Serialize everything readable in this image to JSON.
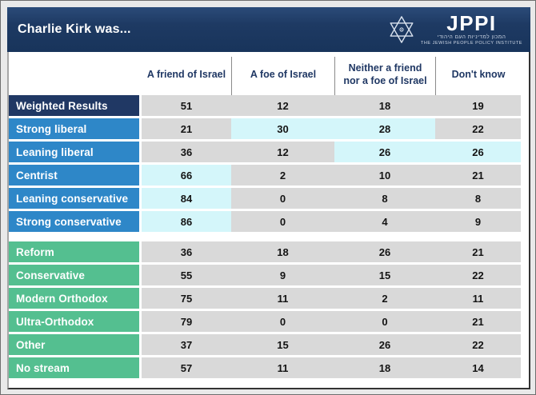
{
  "title": "Charlie Kirk was...",
  "logo": {
    "acronym": "JPPI",
    "hebrew": "המכון למדיניות העם היהודי",
    "english": "THE JEWISH PEOPLE POLICY INSTITUTE"
  },
  "colors": {
    "page_bg": "#e9e9e9",
    "titlebar_navy": "#1e3a63",
    "weighted_label_navy": "#203864",
    "liberal_blue": "#2e87c8",
    "stream_green": "#54bf90",
    "cell_gray": "#d9d9d9",
    "cell_highlight_cyan": "#d4f6fa",
    "header_text_navy": "#203864"
  },
  "chart_data": {
    "type": "table",
    "title": "Charlie Kirk was...",
    "columns": [
      "A friend of Israel",
      "A foe of Israel",
      "Neither a friend nor a foe of Israel",
      "Don't know"
    ],
    "groups": [
      {
        "name": "political-identity",
        "rows": [
          {
            "label": "Weighted Results",
            "label_style": "navy",
            "values": [
              51,
              12,
              18,
              19
            ],
            "highlighted": []
          },
          {
            "label": "Strong liberal",
            "label_style": "blue",
            "values": [
              21,
              30,
              28,
              22
            ],
            "highlighted": [
              1,
              2
            ]
          },
          {
            "label": "Leaning liberal",
            "label_style": "blue",
            "values": [
              36,
              12,
              26,
              26
            ],
            "highlighted": [
              2,
              3
            ]
          },
          {
            "label": "Centrist",
            "label_style": "blue",
            "values": [
              66,
              2,
              10,
              21
            ],
            "highlighted": [
              0
            ]
          },
          {
            "label": "Leaning conservative",
            "label_style": "blue",
            "values": [
              84,
              0,
              8,
              8
            ],
            "highlighted": [
              0
            ]
          },
          {
            "label": "Strong conservative",
            "label_style": "blue",
            "values": [
              86,
              0,
              4,
              9
            ],
            "highlighted": [
              0
            ]
          }
        ]
      },
      {
        "name": "denomination",
        "rows": [
          {
            "label": "Reform",
            "label_style": "green",
            "values": [
              36,
              18,
              26,
              21
            ],
            "highlighted": []
          },
          {
            "label": "Conservative",
            "label_style": "green",
            "values": [
              55,
              9,
              15,
              22
            ],
            "highlighted": []
          },
          {
            "label": "Modern Orthodox",
            "label_style": "green",
            "values": [
              75,
              11,
              2,
              11
            ],
            "highlighted": []
          },
          {
            "label": "Ultra-Orthodox",
            "label_style": "green",
            "values": [
              79,
              0,
              0,
              21
            ],
            "highlighted": []
          },
          {
            "label": "Other",
            "label_style": "green",
            "values": [
              37,
              15,
              26,
              22
            ],
            "highlighted": []
          },
          {
            "label": "No stream",
            "label_style": "green",
            "values": [
              57,
              11,
              18,
              14
            ],
            "highlighted": []
          }
        ]
      }
    ]
  }
}
